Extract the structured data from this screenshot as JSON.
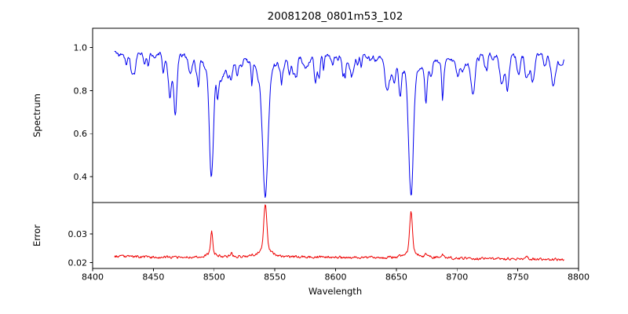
{
  "figure": {
    "title": "20081208_0801m53_102"
  },
  "chart_data": {
    "type": "line",
    "title": "20081208_0801m53_102",
    "xlabel": "Wavelength",
    "xlim": [
      8400,
      8800
    ],
    "x_start": 8418,
    "x_end": 8788,
    "x_step": 0.5,
    "xtick_labels": [
      "8400",
      "8450",
      "8500",
      "8550",
      "8600",
      "8650",
      "8700",
      "8750",
      "8800"
    ],
    "grid": false,
    "legend": "none",
    "panels": [
      {
        "name": "spectrum",
        "ylabel": "Spectrum",
        "color": "#0000ee",
        "ylim": [
          0.28,
          1.09
        ],
        "ytick_labels": [
          "0.4",
          "0.6",
          "0.8",
          "1.0"
        ],
        "continuum_level": 0.973,
        "noise_amplitude": 0.012,
        "absorption_lines": [
          {
            "center": 8498.0,
            "depth": 0.525,
            "width": 2.2,
            "note": "strong line, min ~0.45"
          },
          {
            "center": 8542.1,
            "depth": 0.655,
            "width": 2.8,
            "note": "strong line, min ~0.33"
          },
          {
            "center": 8662.1,
            "depth": 0.635,
            "width": 2.6,
            "note": "strong line, min ~0.34"
          },
          {
            "center": 8432.0,
            "depth": 0.07,
            "width": 1.4
          },
          {
            "center": 8443.0,
            "depth": 0.05,
            "width": 1.2
          },
          {
            "center": 8468.0,
            "depth": 0.09,
            "width": 1.5
          },
          {
            "center": 8514.2,
            "depth": 0.1,
            "width": 1.5
          },
          {
            "center": 8519.0,
            "depth": 0.06,
            "width": 1.2
          },
          {
            "center": 8536.2,
            "depth": 0.05,
            "width": 1.1
          },
          {
            "center": 8582.5,
            "depth": 0.04,
            "width": 1.2
          },
          {
            "center": 8598.0,
            "depth": 0.035,
            "width": 1.1
          },
          {
            "center": 8648.5,
            "depth": 0.05,
            "width": 1.3
          },
          {
            "center": 8674.5,
            "depth": 0.135,
            "width": 1.6
          },
          {
            "center": 8688.5,
            "depth": 0.12,
            "width": 1.6
          },
          {
            "center": 8713.0,
            "depth": 0.05,
            "width": 1.3
          },
          {
            "center": 8742.0,
            "depth": 0.06,
            "width": 1.3
          },
          {
            "center": 8757.0,
            "depth": 0.08,
            "width": 1.4
          },
          {
            "center": 8772.5,
            "depth": 0.05,
            "width": 1.2
          }
        ],
        "micro_lines": {
          "count": 150,
          "max_depth": 0.085,
          "width_range": [
            0.7,
            2.2
          ]
        }
      },
      {
        "name": "error",
        "ylabel": "Error",
        "color": "#ee0000",
        "ylim": [
          0.018,
          0.041
        ],
        "ytick_labels": [
          "0.02",
          "0.03"
        ],
        "baseline": 0.0215,
        "noise_amplitude": 0.0003,
        "spikes": [
          {
            "center": 8498.0,
            "height": 0.0088,
            "width": 1.2,
            "note": "peak ~0.030"
          },
          {
            "center": 8542.1,
            "height": 0.0188,
            "width": 1.7,
            "note": "peak ~0.040, reaches frame top"
          },
          {
            "center": 8662.1,
            "height": 0.0158,
            "width": 1.5,
            "note": "peak ~0.037"
          },
          {
            "center": 8514.2,
            "height": 0.0013,
            "width": 1.2
          },
          {
            "center": 8468.0,
            "height": 0.0007,
            "width": 1.2
          },
          {
            "center": 8674.5,
            "height": 0.0013,
            "width": 1.3
          },
          {
            "center": 8688.5,
            "height": 0.0012,
            "width": 1.3
          },
          {
            "center": 8757.0,
            "height": 0.0008,
            "width": 1.2
          },
          {
            "center": 8432.0,
            "height": 0.0006,
            "width": 1.2
          }
        ]
      }
    ]
  }
}
